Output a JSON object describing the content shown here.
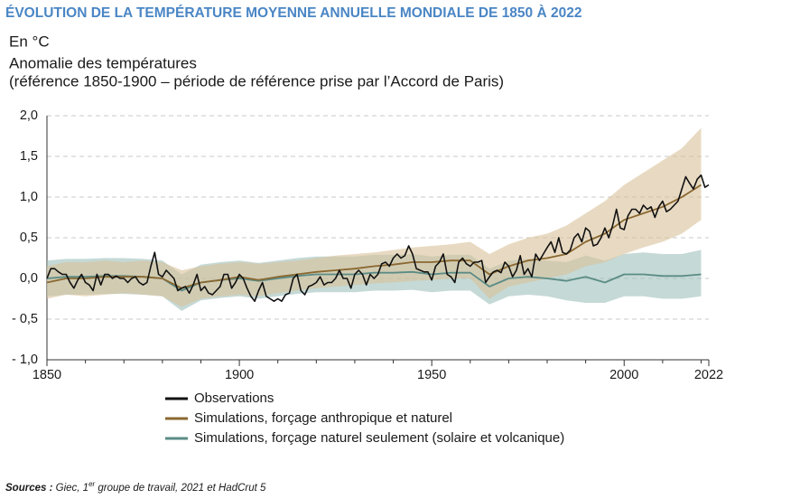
{
  "chart_data": {
    "type": "line",
    "title": "ÉVOLUTION DE LA TEMPÉRATURE MOYENNE ANNUELLE MONDIALE DE 1850 À 2022",
    "unit": "En °C",
    "subtitle": [
      "Anomalie des températures",
      "(référence 1850-1900 – période de référence prise par l’Accord de Paris)"
    ],
    "xlim": [
      1850,
      2022
    ],
    "xticks": [
      1850,
      1900,
      1950,
      2000,
      2022
    ],
    "x_minor_ticks": [
      1860,
      1870,
      1880,
      1890,
      1910,
      1920,
      1930,
      1940,
      1960,
      1970,
      1980,
      1990,
      2010,
      2020
    ],
    "ylim": [
      -1.0,
      2.0
    ],
    "yticks": [
      {
        "value": 2.0,
        "label": "2,0"
      },
      {
        "value": 1.5,
        "label": "1,5"
      },
      {
        "value": 1.0,
        "label": "1,0"
      },
      {
        "value": 0.5,
        "label": "0,5"
      },
      {
        "value": 0.0,
        "label": "0,0"
      },
      {
        "value": -0.5,
        "label": "- 0,5"
      },
      {
        "value": -1.0,
        "label": "- 1,0"
      }
    ],
    "grid": true,
    "series": [
      {
        "name": "Observations",
        "color": "#111111",
        "x": [
          1850,
          1851,
          1852,
          1853,
          1854,
          1855,
          1856,
          1857,
          1858,
          1859,
          1860,
          1861,
          1862,
          1863,
          1864,
          1865,
          1866,
          1867,
          1868,
          1869,
          1870,
          1871,
          1872,
          1873,
          1874,
          1875,
          1876,
          1877,
          1878,
          1879,
          1880,
          1881,
          1882,
          1883,
          1884,
          1885,
          1886,
          1887,
          1888,
          1889,
          1890,
          1891,
          1892,
          1893,
          1894,
          1895,
          1896,
          1897,
          1898,
          1899,
          1900,
          1901,
          1902,
          1903,
          1904,
          1905,
          1906,
          1907,
          1908,
          1909,
          1910,
          1911,
          1912,
          1913,
          1914,
          1915,
          1916,
          1917,
          1918,
          1919,
          1920,
          1921,
          1922,
          1923,
          1924,
          1925,
          1926,
          1927,
          1928,
          1929,
          1930,
          1931,
          1932,
          1933,
          1934,
          1935,
          1936,
          1937,
          1938,
          1939,
          1940,
          1941,
          1942,
          1943,
          1944,
          1945,
          1946,
          1947,
          1948,
          1949,
          1950,
          1951,
          1952,
          1953,
          1954,
          1955,
          1956,
          1957,
          1958,
          1959,
          1960,
          1961,
          1962,
          1963,
          1964,
          1965,
          1966,
          1967,
          1968,
          1969,
          1970,
          1971,
          1972,
          1973,
          1974,
          1975,
          1976,
          1977,
          1978,
          1979,
          1980,
          1981,
          1982,
          1983,
          1984,
          1985,
          1986,
          1987,
          1988,
          1989,
          1990,
          1991,
          1992,
          1993,
          1994,
          1995,
          1996,
          1997,
          1998,
          1999,
          2000,
          2001,
          2002,
          2003,
          2004,
          2005,
          2006,
          2007,
          2008,
          2009,
          2010,
          2011,
          2012,
          2013,
          2014,
          2015,
          2016,
          2017,
          2018,
          2019,
          2020,
          2021,
          2022
        ],
        "values": [
          0.0,
          0.12,
          0.12,
          0.08,
          0.05,
          0.05,
          -0.05,
          -0.12,
          -0.02,
          0.05,
          -0.05,
          -0.08,
          -0.15,
          0.05,
          -0.08,
          0.05,
          0.05,
          0.0,
          0.03,
          0.0,
          0.0,
          -0.05,
          0.0,
          0.02,
          -0.05,
          -0.08,
          -0.05,
          0.15,
          0.32,
          0.05,
          0.02,
          0.1,
          0.05,
          0.0,
          -0.15,
          -0.12,
          -0.1,
          -0.18,
          -0.08,
          0.05,
          -0.15,
          -0.1,
          -0.18,
          -0.2,
          -0.15,
          -0.1,
          0.05,
          0.05,
          -0.12,
          -0.05,
          0.05,
          0.0,
          -0.12,
          -0.22,
          -0.28,
          -0.15,
          -0.05,
          -0.22,
          -0.25,
          -0.28,
          -0.25,
          -0.28,
          -0.2,
          -0.18,
          0.0,
          0.05,
          -0.15,
          -0.2,
          -0.1,
          -0.08,
          -0.05,
          0.02,
          -0.08,
          -0.05,
          -0.05,
          0.0,
          0.1,
          0.0,
          0.0,
          -0.12,
          0.05,
          0.1,
          0.05,
          -0.08,
          0.05,
          0.0,
          0.05,
          0.18,
          0.2,
          0.15,
          0.25,
          0.3,
          0.25,
          0.28,
          0.4,
          0.3,
          0.12,
          0.1,
          0.08,
          0.08,
          -0.02,
          0.15,
          0.2,
          0.3,
          0.05,
          0.02,
          -0.05,
          0.2,
          0.25,
          0.18,
          0.15,
          0.2,
          0.2,
          0.22,
          -0.05,
          0.02,
          0.08,
          0.1,
          0.07,
          0.2,
          0.15,
          0.02,
          0.1,
          0.28,
          0.05,
          0.12,
          0.02,
          0.3,
          0.22,
          0.3,
          0.38,
          0.45,
          0.32,
          0.5,
          0.32,
          0.3,
          0.35,
          0.5,
          0.55,
          0.45,
          0.62,
          0.58,
          0.4,
          0.42,
          0.5,
          0.62,
          0.5,
          0.65,
          0.85,
          0.62,
          0.6,
          0.77,
          0.85,
          0.85,
          0.8,
          0.9,
          0.85,
          0.88,
          0.75,
          0.88,
          0.95,
          0.82,
          0.85,
          0.9,
          0.95,
          1.1,
          1.25,
          1.17,
          1.1,
          1.22,
          1.27,
          1.12,
          1.15
        ]
      },
      {
        "name": "Simulations, forçage anthropique et naturel",
        "color": "#8a6830",
        "band_color": "#d9c29a",
        "x": [
          1850,
          1855,
          1860,
          1865,
          1870,
          1875,
          1880,
          1885,
          1890,
          1895,
          1900,
          1905,
          1910,
          1915,
          1920,
          1925,
          1930,
          1935,
          1940,
          1945,
          1950,
          1955,
          1960,
          1965,
          1970,
          1975,
          1980,
          1985,
          1990,
          1995,
          2000,
          2005,
          2010,
          2015,
          2020
        ],
        "values": [
          -0.05,
          0.0,
          0.0,
          0.02,
          0.02,
          0.02,
          0.0,
          -0.12,
          -0.05,
          -0.02,
          0.02,
          -0.02,
          0.02,
          0.05,
          0.08,
          0.1,
          0.12,
          0.15,
          0.17,
          0.2,
          0.2,
          0.22,
          0.22,
          0.05,
          0.15,
          0.22,
          0.25,
          0.3,
          0.45,
          0.55,
          0.72,
          0.8,
          0.88,
          1.0,
          1.15
        ],
        "lower": [
          -0.25,
          -0.2,
          -0.22,
          -0.2,
          -0.18,
          -0.2,
          -0.22,
          -0.35,
          -0.25,
          -0.22,
          -0.2,
          -0.22,
          -0.18,
          -0.15,
          -0.12,
          -0.1,
          -0.08,
          -0.06,
          -0.05,
          -0.03,
          -0.02,
          0.0,
          0.0,
          -0.25,
          -0.1,
          -0.05,
          0.0,
          0.05,
          0.15,
          0.2,
          0.3,
          0.38,
          0.45,
          0.55,
          0.72
        ],
        "upper": [
          0.15,
          0.2,
          0.2,
          0.22,
          0.2,
          0.22,
          0.2,
          0.1,
          0.15,
          0.18,
          0.2,
          0.18,
          0.2,
          0.22,
          0.25,
          0.28,
          0.3,
          0.32,
          0.35,
          0.38,
          0.4,
          0.42,
          0.45,
          0.3,
          0.42,
          0.5,
          0.55,
          0.65,
          0.8,
          0.95,
          1.15,
          1.3,
          1.45,
          1.6,
          1.85
        ]
      },
      {
        "name": "Simulations, forçage naturel seulement (solaire et volcanique)",
        "color": "#5b8c86",
        "band_color": "#9fc0bb",
        "x": [
          1850,
          1855,
          1860,
          1865,
          1870,
          1875,
          1880,
          1885,
          1890,
          1895,
          1900,
          1905,
          1910,
          1915,
          1920,
          1925,
          1930,
          1935,
          1940,
          1945,
          1950,
          1955,
          1960,
          1965,
          1970,
          1975,
          1980,
          1985,
          1990,
          1995,
          2000,
          2005,
          2010,
          2015,
          2020
        ],
        "values": [
          0.0,
          0.02,
          0.02,
          0.03,
          0.03,
          0.02,
          0.0,
          -0.15,
          -0.05,
          -0.02,
          0.0,
          -0.03,
          0.0,
          0.03,
          0.05,
          0.05,
          0.05,
          0.07,
          0.07,
          0.08,
          0.05,
          0.07,
          0.07,
          -0.1,
          0.0,
          0.02,
          0.0,
          -0.03,
          0.02,
          -0.05,
          0.05,
          0.05,
          0.03,
          0.03,
          0.05
        ],
        "lower": [
          -0.22,
          -0.2,
          -0.2,
          -0.19,
          -0.19,
          -0.2,
          -0.22,
          -0.4,
          -0.27,
          -0.24,
          -0.22,
          -0.25,
          -0.22,
          -0.19,
          -0.17,
          -0.17,
          -0.17,
          -0.15,
          -0.15,
          -0.14,
          -0.17,
          -0.15,
          -0.15,
          -0.32,
          -0.22,
          -0.2,
          -0.22,
          -0.27,
          -0.3,
          -0.3,
          -0.22,
          -0.22,
          -0.25,
          -0.25,
          -0.22
        ],
        "upper": [
          0.22,
          0.24,
          0.24,
          0.25,
          0.25,
          0.24,
          0.22,
          0.05,
          0.17,
          0.2,
          0.22,
          0.19,
          0.22,
          0.25,
          0.27,
          0.27,
          0.27,
          0.29,
          0.29,
          0.3,
          0.27,
          0.29,
          0.29,
          0.12,
          0.22,
          0.24,
          0.22,
          0.2,
          0.28,
          0.22,
          0.3,
          0.32,
          0.3,
          0.3,
          0.35
        ]
      }
    ],
    "source": {
      "label": "Sources :",
      "text_before": "Giec, 1",
      "superscript": "er",
      "text_after": " groupe de travail, 2021 et HadCrut 5"
    }
  }
}
